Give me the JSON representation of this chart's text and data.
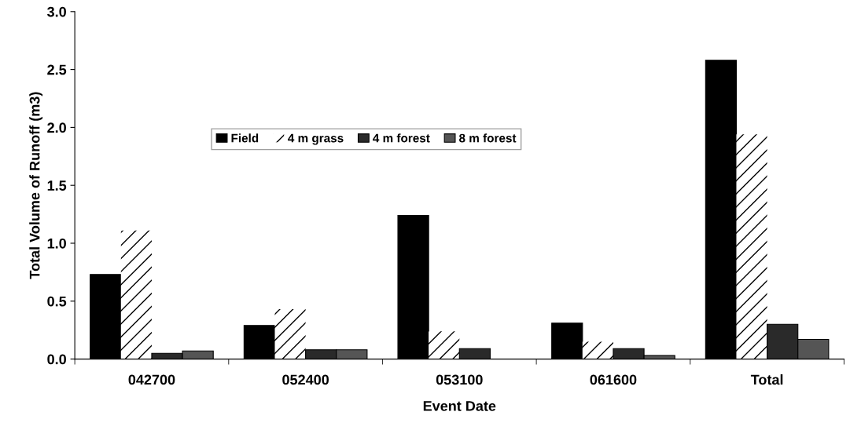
{
  "chart_data": {
    "type": "bar",
    "xlabel": "Event Date",
    "ylabel": "Total Volume of Runoff (m3)",
    "categories": [
      "042700",
      "052400",
      "053100",
      "061600",
      "Total"
    ],
    "series": [
      {
        "name": "Field",
        "color": "#000000",
        "values": [
          0.73,
          0.29,
          1.24,
          0.31,
          2.58
        ]
      },
      {
        "name": "4 m grass",
        "color": "#ffffff",
        "values": [
          1.11,
          0.43,
          0.24,
          0.15,
          1.94
        ]
      },
      {
        "name": "4 m forest",
        "color": "#2a2a2a",
        "values": [
          0.05,
          0.08,
          0.09,
          0.09,
          0.3
        ]
      },
      {
        "name": "8 m forest",
        "color": "#555555",
        "values": [
          0.07,
          0.08,
          null,
          0.03,
          0.17
        ]
      }
    ],
    "ylim": [
      0,
      3
    ],
    "yticks": [
      {
        "value": 0,
        "label": "0.0"
      },
      {
        "value": 0.5,
        "label": "0.5"
      },
      {
        "value": 1,
        "label": "1.0"
      },
      {
        "value": 1.5,
        "label": "1.5"
      },
      {
        "value": 2,
        "label": "2.0"
      },
      {
        "value": 2.5,
        "label": "2.5"
      },
      {
        "value": 3,
        "label": "3.0"
      }
    ],
    "legend": "top left",
    "grid": false
  }
}
